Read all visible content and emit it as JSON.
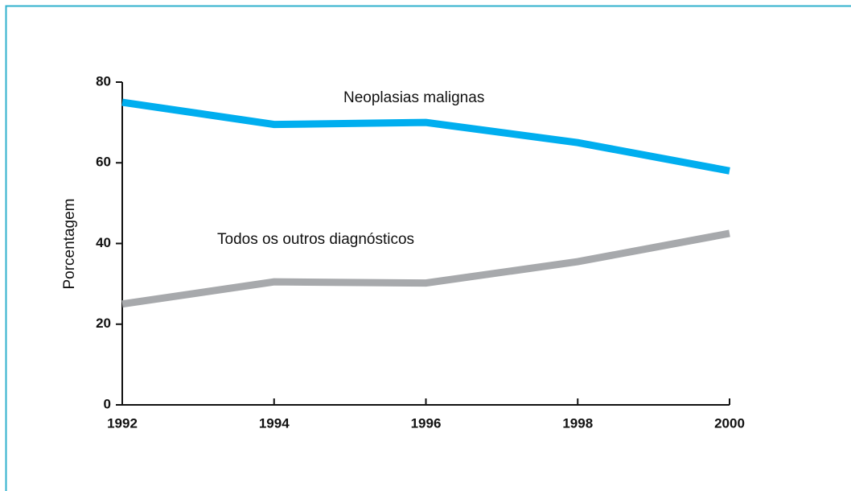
{
  "chart_data": {
    "type": "line",
    "y_label": "Porcentagem",
    "x": [
      1992,
      1994,
      1996,
      1998,
      2000
    ],
    "series": [
      {
        "name": "Neoplasias malignas",
        "color": "#00aeef",
        "values": [
          75,
          69.5,
          70,
          65,
          58
        ]
      },
      {
        "name": "Todos os outros diagnósticos",
        "color": "#a7a9ac",
        "values": [
          25,
          30.5,
          30.2,
          35.5,
          42.5
        ]
      }
    ],
    "xlim": [
      1992,
      2000
    ],
    "xticks": [
      1992,
      1994,
      1996,
      1998,
      2000
    ],
    "ylim": [
      0,
      80
    ],
    "yticks": [
      0,
      20,
      40,
      60,
      80
    ]
  }
}
